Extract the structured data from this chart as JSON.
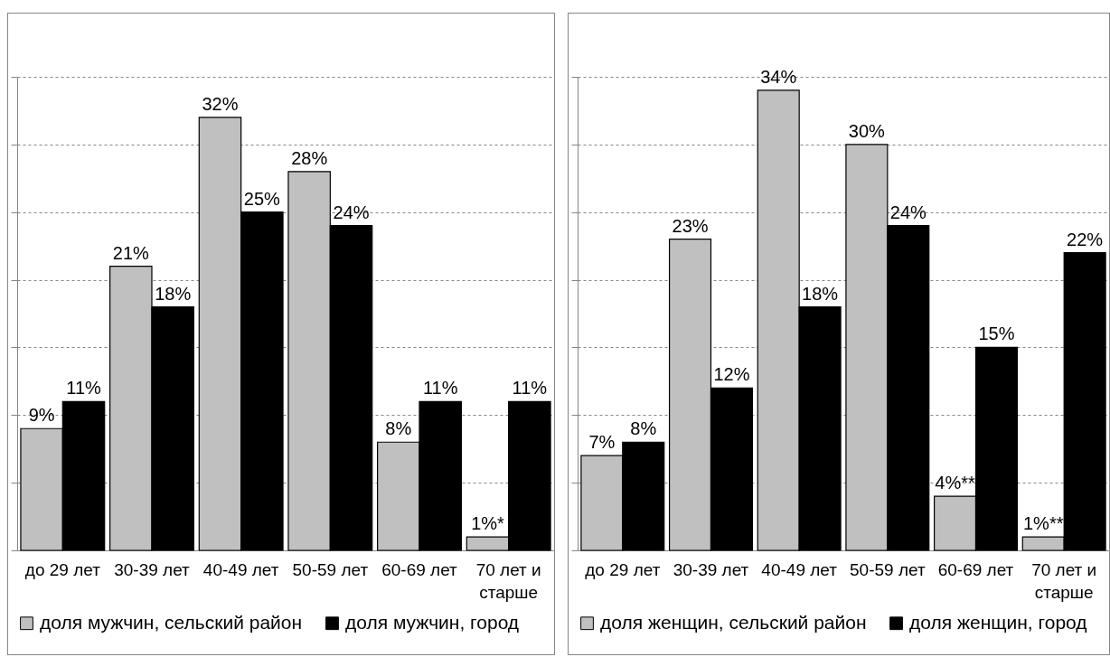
{
  "chart_data": [
    {
      "type": "bar",
      "categories": [
        "до 29 лет",
        "30-39 лет",
        "40-49 лет",
        "50-59 лет",
        "60-69 лет",
        "70 лет и старше"
      ],
      "series": [
        {
          "name": "доля мужчин, сельский район",
          "color": "#c0c0c0",
          "values": [
            9,
            21,
            32,
            28,
            8,
            1
          ],
          "value_labels": [
            "9%",
            "21%",
            "32%",
            "28%",
            "8%",
            "1%*"
          ]
        },
        {
          "name": "доля мужчин, город",
          "color": "#000000",
          "values": [
            11,
            18,
            25,
            24,
            11,
            11
          ],
          "value_labels": [
            "11%",
            "18%",
            "25%",
            "24%",
            "11%",
            "11%"
          ]
        }
      ],
      "ylim": [
        0,
        35
      ],
      "yticks": [
        {
          "value": 0,
          "label": null
        },
        {
          "value": 5,
          "label": null
        },
        {
          "value": 10,
          "label": null
        },
        {
          "value": 15,
          "label": null
        },
        {
          "value": 20,
          "label": null
        },
        {
          "value": 25,
          "label": null
        },
        {
          "value": 30,
          "label": null
        },
        {
          "value": 35,
          "label": null
        }
      ],
      "grid": "y",
      "legend": "bottom",
      "tick_labels": "x"
    },
    {
      "type": "bar",
      "categories": [
        "до 29 лет",
        "30-39 лет",
        "40-49 лет",
        "50-59 лет",
        "60-69 лет",
        "70 лет и старше"
      ],
      "series": [
        {
          "name": "доля женщин, сельский район",
          "color": "#c0c0c0",
          "values": [
            7,
            23,
            34,
            30,
            4,
            1
          ],
          "value_labels": [
            "7%",
            "23%",
            "34%",
            "30%",
            "4%**",
            "1%**"
          ]
        },
        {
          "name": "доля женщин, город",
          "color": "#000000",
          "values": [
            8,
            12,
            18,
            24,
            15,
            22
          ],
          "value_labels": [
            "8%",
            "12%",
            "18%",
            "24%",
            "15%",
            "22%"
          ]
        }
      ],
      "ylim": [
        0,
        35
      ],
      "yticks": [
        {
          "value": 0,
          "label": null
        },
        {
          "value": 5,
          "label": null
        },
        {
          "value": 10,
          "label": null
        },
        {
          "value": 15,
          "label": null
        },
        {
          "value": 20,
          "label": null
        },
        {
          "value": 25,
          "label": null
        },
        {
          "value": 30,
          "label": null
        },
        {
          "value": 35,
          "label": null
        }
      ],
      "grid": "y",
      "legend": "bottom",
      "tick_labels": "x"
    }
  ]
}
